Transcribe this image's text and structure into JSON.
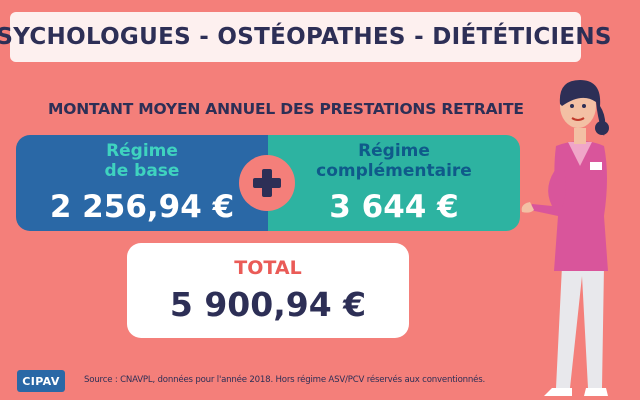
{
  "title": "PSYCHOLOGUES - OSTÉOPATHES - DIÉTÉTICIENS",
  "subtitle": "MONTANT MOYEN ANNUEL DES PRESTATIONS RETRAITE",
  "base": {
    "label_line1": "Régime",
    "label_line2": "de base",
    "amount": "2 256,94 €"
  },
  "complementary": {
    "label_line1": "Régime",
    "label_line2": "complémentaire",
    "amount": "3 644 €"
  },
  "plus_icon": "plus-icon",
  "total": {
    "label": "TOTAL",
    "amount": "5 900,94 €"
  },
  "logo": "CIPAV",
  "source": "Source : CNAVPL, données pour l'année 2018. Hors régime ASV/PCV réservés aux conventionnés.",
  "colors": {
    "background": "#f47f7a",
    "title_text": "#2d2f56",
    "base_band": "#2a68a6",
    "complementary_band": "#2db3a1",
    "total_label": "#ea5b57"
  }
}
